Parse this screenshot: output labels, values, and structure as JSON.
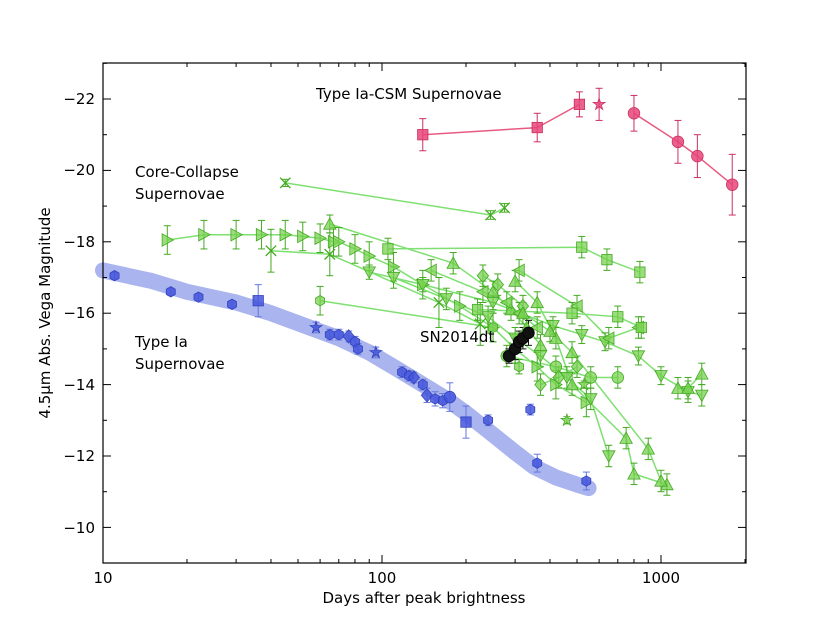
{
  "chart_data": {
    "type": "scatter",
    "title": "",
    "xlabel": "Days after peak brightness",
    "ylabel": "4.5μm Abs. Vega Magnitude",
    "xscale": "log",
    "xlim": [
      10,
      2000
    ],
    "ylim": [
      -9,
      -23
    ],
    "x_tick_labels": [
      "10",
      "100",
      "1000"
    ],
    "y_tick_labels": [
      "−22",
      "−20",
      "−18",
      "−16",
      "−14",
      "−12",
      "−10"
    ],
    "annotations": {
      "ia_csm": "Type Ia-CSM Supernovae",
      "cc_line1": "Core-Collapse",
      "cc_line2": "Supernovae",
      "ia_line1": "Type Ia",
      "ia_line2": "Supernovae",
      "sn2014dt": "SN2014dt"
    },
    "colors": {
      "ia": "#4455dd",
      "ia_band": "#aab4ee",
      "ia_csm": "#e8457a",
      "ia_csm_line": "#e85a7f",
      "cc": "#66cc44",
      "cc_line": "#7ee070",
      "sn2014dt": "#111111"
    },
    "ia_template": {
      "x": [
        10,
        15,
        20,
        30,
        40,
        55,
        70,
        90,
        110,
        140,
        170,
        200,
        250,
        300,
        350,
        420,
        500,
        550
      ],
      "y": [
        -17.2,
        -16.9,
        -16.6,
        -16.3,
        -16.0,
        -15.6,
        -15.3,
        -14.9,
        -14.5,
        -14.0,
        -13.6,
        -13.2,
        -12.6,
        -12.1,
        -11.7,
        -11.4,
        -11.2,
        -11.1
      ]
    },
    "ia_points": [
      {
        "x": 11,
        "y": -17.05,
        "m": "hexagon",
        "e": 0.1
      },
      {
        "x": 17.5,
        "y": -16.6,
        "m": "hexagon",
        "e": 0.1
      },
      {
        "x": 22,
        "y": -16.45,
        "m": "hexagon",
        "e": 0.1
      },
      {
        "x": 29,
        "y": -16.25,
        "m": "hexagon",
        "e": 0.1
      },
      {
        "x": 36,
        "y": -16.35,
        "m": "square",
        "e": 0.45
      },
      {
        "x": 58,
        "y": -15.6,
        "m": "star",
        "e": 0.15
      },
      {
        "x": 65,
        "y": -15.4,
        "m": "hexagon",
        "e": 0.15
      },
      {
        "x": 70,
        "y": -15.4,
        "m": "hexagon",
        "e": 0.15
      },
      {
        "x": 76,
        "y": -15.35,
        "m": "diamond",
        "e": 0.15
      },
      {
        "x": 80,
        "y": -15.2,
        "m": "hexagon",
        "e": 0.15
      },
      {
        "x": 82,
        "y": -15.0,
        "m": "hexagon",
        "e": 0.15
      },
      {
        "x": 95,
        "y": -14.9,
        "m": "star",
        "e": 0.15
      },
      {
        "x": 118,
        "y": -14.35,
        "m": "hexagon",
        "e": 0.15
      },
      {
        "x": 125,
        "y": -14.25,
        "m": "hexagon",
        "e": 0.15
      },
      {
        "x": 130,
        "y": -14.2,
        "m": "diamond",
        "e": 0.15
      },
      {
        "x": 140,
        "y": -14.0,
        "m": "hexagon",
        "e": 0.15
      },
      {
        "x": 145,
        "y": -13.7,
        "m": "diamond",
        "e": 0.2
      },
      {
        "x": 155,
        "y": -13.6,
        "m": "hexagon",
        "e": 0.2
      },
      {
        "x": 165,
        "y": -13.55,
        "m": "hexagon",
        "e": 0.2
      },
      {
        "x": 175,
        "y": -13.65,
        "m": "circle",
        "e": 0.4
      },
      {
        "x": 200,
        "y": -12.95,
        "m": "square",
        "e": 0.45
      },
      {
        "x": 240,
        "y": -13.0,
        "m": "hexagon",
        "e": 0.15
      },
      {
        "x": 340,
        "y": -13.3,
        "m": "hexagon",
        "e": 0.15
      },
      {
        "x": 360,
        "y": -11.8,
        "m": "hexagon",
        "e": 0.25
      },
      {
        "x": 540,
        "y": -11.3,
        "m": "hexagon",
        "e": 0.25
      }
    ],
    "ia_csm_series": [
      {
        "marker": "square",
        "x": [
          140,
          360,
          510
        ],
        "y": [
          -21.0,
          -21.2,
          -21.85
        ],
        "e": [
          0.45,
          0.4,
          0.35
        ]
      },
      {
        "marker": "star",
        "x": [
          600
        ],
        "y": [
          -21.85
        ],
        "e": [
          0.45
        ]
      },
      {
        "marker": "circle",
        "x": [
          800,
          1150,
          1350,
          1800
        ],
        "y": [
          -21.6,
          -20.8,
          -20.4,
          -19.6
        ],
        "e": [
          0.5,
          0.6,
          0.6,
          0.85
        ]
      }
    ],
    "cc_series": [
      {
        "marker": "cross",
        "x": [
          45,
          245,
          275
        ],
        "y": [
          -19.65,
          -18.75,
          -18.95
        ],
        "e": [
          0.1,
          0.12,
          0.12
        ]
      },
      {
        "marker": "tri_right",
        "x": [
          17,
          23,
          30,
          37,
          45,
          52,
          60,
          67
        ],
        "y": [
          -18.05,
          -18.2,
          -18.2,
          -18.2,
          -18.2,
          -18.15,
          -18.1,
          -18.0
        ],
        "e": [
          0.4,
          0.4,
          0.4,
          0.4,
          0.4,
          0.4,
          0.4,
          0.4
        ]
      },
      {
        "marker": "cross",
        "x": [
          40,
          65,
          160,
          225
        ],
        "y": [
          -17.75,
          -17.65,
          -16.3,
          -15.7
        ],
        "e": [
          0.6,
          0.6,
          0.7,
          0.6
        ]
      },
      {
        "marker": "tri_up",
        "x": [
          65,
          180,
          250,
          290,
          330,
          370
        ],
        "y": [
          -18.5,
          -17.4,
          -16.6,
          -16.1,
          -15.6,
          -15.1
        ],
        "e": [
          0.25,
          0.3,
          0.3,
          0.3,
          0.3,
          0.3
        ]
      },
      {
        "marker": "tri_right",
        "x": [
          70,
          80,
          90,
          110,
          140,
          190,
          250,
          300,
          360,
          420,
          540
        ],
        "y": [
          -18.0,
          -17.8,
          -17.6,
          -17.3,
          -16.8,
          -16.2,
          -15.6,
          -15.0,
          -14.5,
          -14.0,
          -13.5
        ],
        "e": [
          0.4,
          0.4,
          0.4,
          0.4,
          0.4,
          0.4,
          0.4,
          0.4,
          0.4,
          0.4,
          0.4
        ]
      },
      {
        "marker": "tri_down",
        "x": [
          90,
          140,
          250,
          410,
          520,
          630,
          830,
          1000,
          1250,
          1400
        ],
        "y": [
          -17.15,
          -16.8,
          -16.3,
          -15.65,
          -15.4,
          -15.2,
          -14.8,
          -14.25,
          -13.8,
          -13.7
        ],
        "e": [
          0.2,
          0.2,
          0.2,
          0.25,
          0.25,
          0.25,
          0.25,
          0.25,
          0.3,
          0.3
        ]
      },
      {
        "marker": "tri_down",
        "x": [
          110,
          170,
          240,
          300,
          370,
          460,
          560,
          650
        ],
        "y": [
          -17.0,
          -16.4,
          -15.9,
          -15.3,
          -14.8,
          -14.2,
          -13.6,
          -12.0
        ],
        "e": [
          0.3,
          0.3,
          0.3,
          0.3,
          0.3,
          0.3,
          0.3,
          0.3
        ]
      },
      {
        "marker": "square",
        "x": [
          105,
          520,
          640,
          840
        ],
        "y": [
          -17.8,
          -17.85,
          -17.5,
          -17.15
        ],
        "e": [
          0.3,
          0.3,
          0.3,
          0.3
        ]
      },
      {
        "marker": "tri_left",
        "x": [
          150,
          230,
          280,
          310,
          360
        ],
        "y": [
          -17.2,
          -16.6,
          -16.3,
          -16.0,
          -15.6
        ],
        "e": [
          0.3,
          0.3,
          0.3,
          0.3,
          0.3
        ]
      },
      {
        "marker": "diamond",
        "x": [
          230,
          260,
          320
        ],
        "y": [
          -17.05,
          -16.8,
          -16.2
        ],
        "e": [
          0.3,
          0.3,
          0.3
        ]
      },
      {
        "marker": "tri_left",
        "x": [
          310,
          500,
          650,
          830
        ],
        "y": [
          -17.2,
          -16.2,
          -15.3,
          -15.6
        ],
        "e": [
          0.3,
          0.3,
          0.3,
          0.3
        ]
      },
      {
        "marker": "square",
        "x": [
          220,
          480,
          700,
          850
        ],
        "y": [
          -16.1,
          -16.0,
          -15.9,
          -15.6
        ],
        "e": [
          0.3,
          0.3,
          0.3,
          0.3
        ]
      },
      {
        "marker": "hexagon",
        "x": [
          60,
          250,
          300
        ],
        "y": [
          -16.35,
          -15.6,
          -15.0
        ],
        "e": [
          0.4,
          0.4,
          0.4
        ]
      },
      {
        "marker": "tri_up",
        "x": [
          300,
          360,
          420,
          480,
          750,
          800,
          1050
        ],
        "y": [
          -16.9,
          -16.3,
          -15.3,
          -14.0,
          -12.5,
          -11.5,
          -11.2
        ],
        "e": [
          0.3,
          0.3,
          0.3,
          0.3,
          0.3,
          0.3,
          0.3
        ]
      },
      {
        "marker": "tri_up",
        "x": [
          320,
          400,
          480,
          900,
          1000
        ],
        "y": [
          -16.0,
          -15.5,
          -14.9,
          -12.2,
          -11.3
        ],
        "e": [
          0.3,
          0.3,
          0.3,
          0.3,
          0.3
        ]
      },
      {
        "marker": "circle",
        "x": [
          280,
          420,
          560,
          700
        ],
        "y": [
          -14.8,
          -14.5,
          -14.2,
          -14.2
        ],
        "e": [
          0.3,
          0.3,
          0.3,
          0.3
        ]
      },
      {
        "marker": "diamond",
        "x": [
          370,
          430,
          500
        ],
        "y": [
          -14.0,
          -14.2,
          -14.5
        ],
        "e": [
          0.3,
          0.3,
          0.3
        ]
      },
      {
        "marker": "hexagon",
        "x": [
          310
        ],
        "y": [
          -14.5
        ],
        "e": [
          0.2
        ]
      },
      {
        "marker": "star",
        "x": [
          460
        ],
        "y": [
          -13.0
        ],
        "e": [
          0.1
        ]
      },
      {
        "marker": "star",
        "x": [
          530
        ],
        "y": [
          -14.0
        ],
        "e": [
          0.1
        ]
      },
      {
        "marker": "tri_up",
        "x": [
          1150,
          1250,
          1400
        ],
        "y": [
          -13.9,
          -13.9,
          -14.3
        ],
        "e": [
          0.3,
          0.3,
          0.3
        ]
      }
    ],
    "sn2014dt": {
      "x": [
        285,
        300,
        310,
        320,
        335
      ],
      "y": [
        -14.8,
        -15.0,
        -15.2,
        -15.3,
        -15.45
      ],
      "e": [
        0.2,
        0.3,
        0.3,
        0.3,
        0.35
      ]
    }
  }
}
